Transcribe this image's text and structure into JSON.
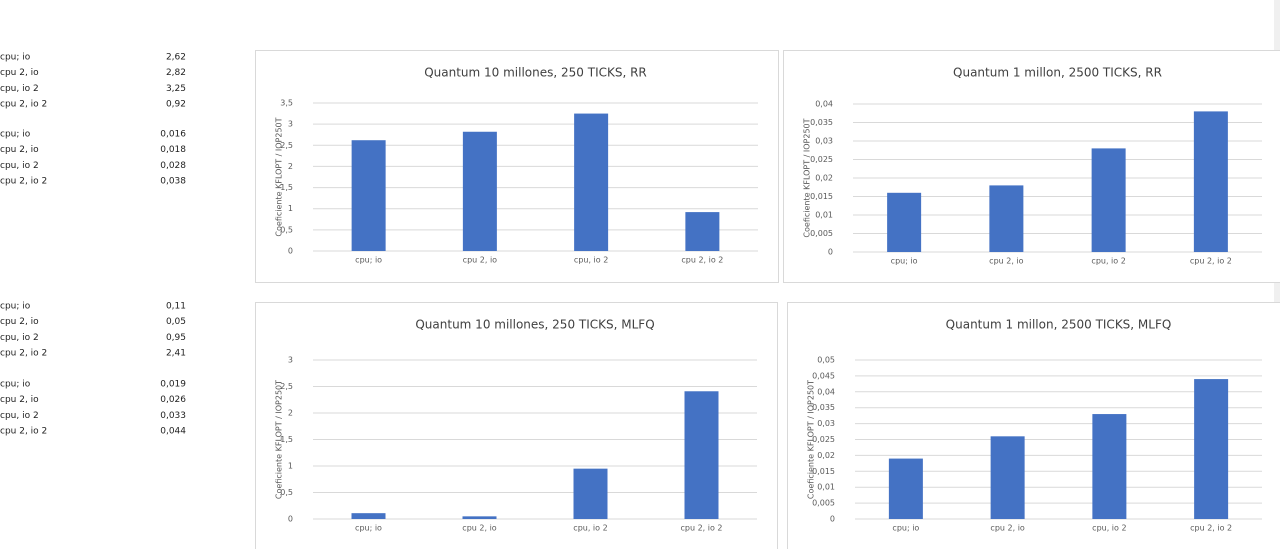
{
  "tables": [
    {
      "rows": [
        [
          "cpu; io",
          "2,62"
        ],
        [
          "cpu 2, io",
          "2,82"
        ],
        [
          "cpu, io 2",
          "3,25"
        ],
        [
          "cpu 2, io 2",
          "0,92"
        ]
      ]
    },
    {
      "rows": [
        [
          "cpu; io",
          "0,016"
        ],
        [
          "cpu 2, io",
          "0,018"
        ],
        [
          "cpu, io 2",
          "0,028"
        ],
        [
          "cpu 2, io 2",
          "0,038"
        ]
      ]
    },
    {
      "rows": [
        [
          "cpu; io",
          "0,11"
        ],
        [
          "cpu 2, io",
          "0,05"
        ],
        [
          "cpu, io 2",
          "0,95"
        ],
        [
          "cpu 2, io 2",
          "2,41"
        ]
      ]
    },
    {
      "rows": [
        [
          "cpu; io",
          "0,019"
        ],
        [
          "cpu 2, io",
          "0,026"
        ],
        [
          "cpu, io 2",
          "0,033"
        ],
        [
          "cpu 2, io 2",
          "0,044"
        ]
      ]
    }
  ],
  "chart_data": [
    {
      "type": "bar",
      "title": "Quantum 10 millones, 250 TICKS, RR",
      "y_label": "Coeficiente KFLOPT / IOP250T",
      "categories": [
        "cpu; io",
        "cpu 2, io",
        "cpu, io 2",
        "cpu 2, io 2"
      ],
      "values": [
        2.62,
        2.82,
        3.25,
        0.92
      ],
      "color": "#4472c4",
      "ylim": [
        0,
        3.5
      ],
      "yticks": [
        0,
        {
          "value": 0.5,
          "label": "0,5"
        },
        1,
        {
          "value": 1.5,
          "label": "1,5"
        },
        2,
        {
          "value": 2.5,
          "label": "2,5"
        },
        3,
        {
          "value": 3.5,
          "label": "3,5"
        }
      ],
      "grid": true
    },
    {
      "type": "bar",
      "title": "Quantum 1 millon, 2500 TICKS, RR",
      "y_label": "Coeficiente KFLOPT / IOP250T",
      "categories": [
        "cpu; io",
        "cpu 2, io",
        "cpu, io 2",
        "cpu 2, io 2"
      ],
      "values": [
        0.016,
        0.018,
        0.028,
        0.038
      ],
      "color": "#4472c4",
      "ylim": [
        0,
        0.04
      ],
      "yticks": [
        0,
        {
          "value": 0.005,
          "label": "0,005"
        },
        {
          "value": 0.01,
          "label": "0,01"
        },
        {
          "value": 0.015,
          "label": "0,015"
        },
        {
          "value": 0.02,
          "label": "0,02"
        },
        {
          "value": 0.025,
          "label": "0,025"
        },
        {
          "value": 0.03,
          "label": "0,03"
        },
        {
          "value": 0.035,
          "label": "0,035"
        },
        {
          "value": 0.04,
          "label": "0,04"
        }
      ],
      "grid": true
    },
    {
      "type": "bar",
      "title": "Quantum 10 millones, 250 TICKS, MLFQ",
      "y_label": "Coeficiente KFLOPT / IOP250T",
      "categories": [
        "cpu; io",
        "cpu 2, io",
        "cpu, io 2",
        "cpu 2, io 2"
      ],
      "values": [
        0.11,
        0.05,
        0.95,
        2.41
      ],
      "color": "#4472c4",
      "ylim": [
        0,
        3
      ],
      "yticks": [
        0,
        {
          "value": 0.5,
          "label": "0,5"
        },
        1,
        {
          "value": 1.5,
          "label": "1,5"
        },
        2,
        {
          "value": 2.5,
          "label": "2,5"
        },
        3
      ],
      "grid": true
    },
    {
      "type": "bar",
      "title": "Quantum 1 millon, 2500 TICKS, MLFQ",
      "y_label": "Coeficiente KFLOPT / IOP250T",
      "categories": [
        "cpu; io",
        "cpu 2, io",
        "cpu, io 2",
        "cpu 2, io 2"
      ],
      "values": [
        0.019,
        0.026,
        0.033,
        0.044
      ],
      "color": "#4472c4",
      "ylim": [
        0,
        0.05
      ],
      "yticks": [
        0,
        {
          "value": 0.005,
          "label": "0,005"
        },
        {
          "value": 0.01,
          "label": "0,01"
        },
        {
          "value": 0.015,
          "label": "0,015"
        },
        {
          "value": 0.02,
          "label": "0,02"
        },
        {
          "value": 0.025,
          "label": "0,025"
        },
        {
          "value": 0.03,
          "label": "0,03"
        },
        {
          "value": 0.035,
          "label": "0,035"
        },
        {
          "value": 0.04,
          "label": "0,04"
        },
        {
          "value": 0.045,
          "label": "0,045"
        },
        {
          "value": 0.05,
          "label": "0,05"
        }
      ],
      "grid": true
    }
  ]
}
